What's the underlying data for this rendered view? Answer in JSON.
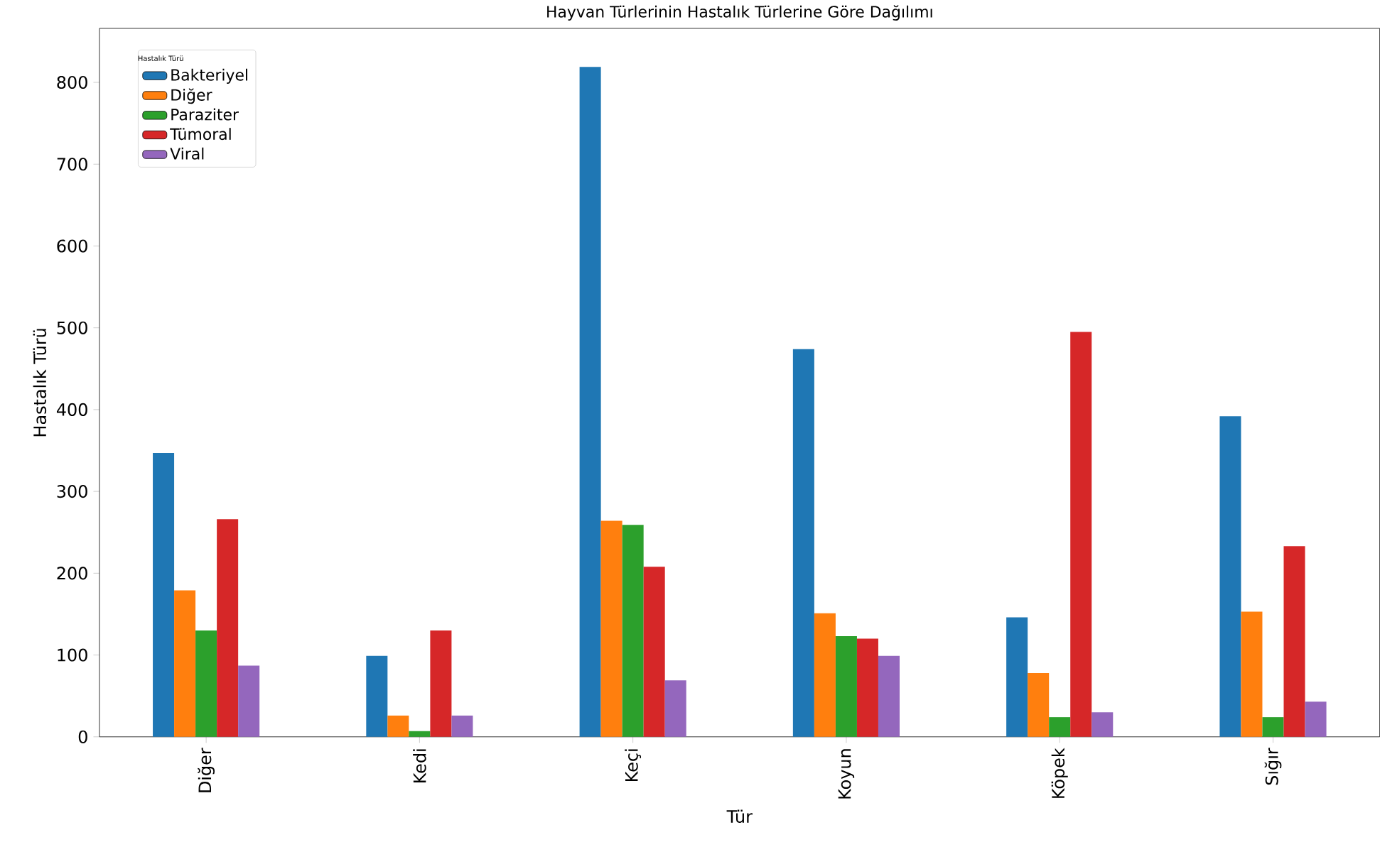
{
  "chart_data": {
    "type": "bar",
    "title": "Hayvan Türlerinin Hastalık Türlerine Göre Dağılımı",
    "xlabel": "Tür",
    "ylabel": "Hastalık Türü",
    "legend_title": "Hastalık Türü",
    "legend": "top left",
    "categories": [
      "Diğer",
      "Kedi",
      "Keçi",
      "Koyun",
      "Köpek",
      "Sığır"
    ],
    "series": [
      {
        "name": "Bakteriyel",
        "color": "#1f77b4",
        "values": [
          347,
          99,
          819,
          474,
          146,
          392
        ]
      },
      {
        "name": "Diğer",
        "color": "#ff7f0e",
        "values": [
          179,
          26,
          264,
          151,
          78,
          153
        ]
      },
      {
        "name": "Paraziter",
        "color": "#2ca02c",
        "values": [
          130,
          7,
          259,
          123,
          24,
          24
        ]
      },
      {
        "name": "Tümoral",
        "color": "#d62728",
        "values": [
          266,
          130,
          208,
          120,
          495,
          233
        ]
      },
      {
        "name": "Viral",
        "color": "#9467bd",
        "values": [
          87,
          26,
          69,
          99,
          30,
          43
        ]
      }
    ],
    "ylim": [
      0,
      866
    ],
    "yticks": [
      0,
      100,
      200,
      300,
      400,
      500,
      600,
      700,
      800
    ]
  }
}
